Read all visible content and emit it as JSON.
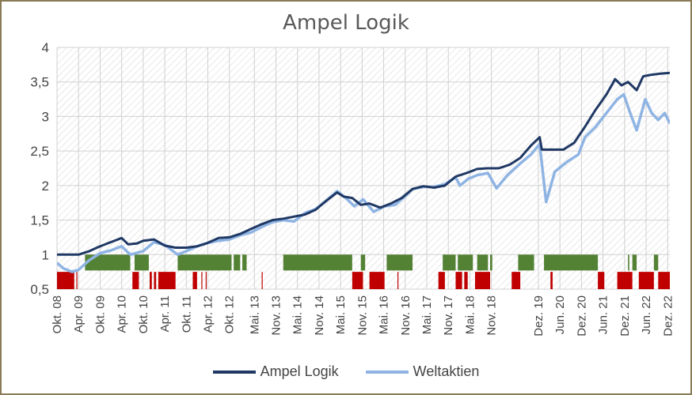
{
  "chart_data": {
    "type": "line",
    "title": "Ampel Logik",
    "xlabel": "",
    "ylabel": "",
    "ylim": [
      0.5,
      4
    ],
    "yticks": [
      "0,5",
      "1",
      "1,5",
      "2",
      "2,5",
      "3",
      "3,5",
      "4"
    ],
    "x_range": [
      2008.75,
      2022.97
    ],
    "x_ticks": [
      {
        "t": 2008.75,
        "label": "Okt. 08"
      },
      {
        "t": 2009.25,
        "label": "Apr. 09"
      },
      {
        "t": 2009.75,
        "label": "Okt. 09"
      },
      {
        "t": 2010.25,
        "label": "Apr. 10"
      },
      {
        "t": 2010.75,
        "label": "Okt. 10"
      },
      {
        "t": 2011.25,
        "label": "Apr. 11"
      },
      {
        "t": 2011.75,
        "label": "Okt. 11"
      },
      {
        "t": 2012.25,
        "label": "Apr. 12"
      },
      {
        "t": 2012.75,
        "label": "Okt. 12"
      },
      {
        "t": 2013.33,
        "label": "Mai. 13"
      },
      {
        "t": 2013.83,
        "label": "Nov. 13"
      },
      {
        "t": 2014.33,
        "label": "Mai. 14"
      },
      {
        "t": 2014.83,
        "label": "Nov. 14"
      },
      {
        "t": 2015.33,
        "label": "Mai. 15"
      },
      {
        "t": 2015.83,
        "label": "Nov. 15"
      },
      {
        "t": 2016.33,
        "label": "Mai. 16"
      },
      {
        "t": 2016.83,
        "label": "Nov. 16"
      },
      {
        "t": 2017.33,
        "label": "Mai. 17"
      },
      {
        "t": 2017.83,
        "label": "Nov. 17"
      },
      {
        "t": 2018.33,
        "label": "Mai. 18"
      },
      {
        "t": 2018.83,
        "label": "Nov. 18"
      },
      {
        "t": 2019.92,
        "label": "Dez. 19"
      },
      {
        "t": 2020.42,
        "label": "Jun. 20"
      },
      {
        "t": 2020.92,
        "label": "Dez. 20"
      },
      {
        "t": 2021.42,
        "label": "Jun. 21"
      },
      {
        "t": 2021.92,
        "label": "Dez. 21"
      },
      {
        "t": 2022.42,
        "label": "Jun. 22"
      },
      {
        "t": 2022.92,
        "label": "Dez. 22"
      }
    ],
    "grid": true,
    "legend_position": "bottom",
    "series": [
      {
        "name": "Ampel Logik",
        "color": "#1f3864",
        "points": [
          [
            2008.75,
            1.0
          ],
          [
            2009.0,
            1.0
          ],
          [
            2009.25,
            1.0
          ],
          [
            2009.5,
            1.05
          ],
          [
            2009.75,
            1.12
          ],
          [
            2010.0,
            1.18
          ],
          [
            2010.25,
            1.24
          ],
          [
            2010.4,
            1.15
          ],
          [
            2010.6,
            1.16
          ],
          [
            2010.75,
            1.2
          ],
          [
            2011.0,
            1.22
          ],
          [
            2011.25,
            1.13
          ],
          [
            2011.5,
            1.1
          ],
          [
            2011.75,
            1.1
          ],
          [
            2012.0,
            1.12
          ],
          [
            2012.25,
            1.17
          ],
          [
            2012.5,
            1.24
          ],
          [
            2012.75,
            1.25
          ],
          [
            2013.0,
            1.3
          ],
          [
            2013.25,
            1.37
          ],
          [
            2013.5,
            1.44
          ],
          [
            2013.75,
            1.5
          ],
          [
            2014.0,
            1.52
          ],
          [
            2014.25,
            1.55
          ],
          [
            2014.5,
            1.58
          ],
          [
            2014.75,
            1.65
          ],
          [
            2015.0,
            1.78
          ],
          [
            2015.25,
            1.9
          ],
          [
            2015.4,
            1.84
          ],
          [
            2015.6,
            1.82
          ],
          [
            2015.8,
            1.72
          ],
          [
            2016.0,
            1.74
          ],
          [
            2016.25,
            1.68
          ],
          [
            2016.5,
            1.74
          ],
          [
            2016.75,
            1.82
          ],
          [
            2017.0,
            1.95
          ],
          [
            2017.25,
            1.99
          ],
          [
            2017.5,
            1.97
          ],
          [
            2017.75,
            2.0
          ],
          [
            2018.0,
            2.13
          ],
          [
            2018.25,
            2.18
          ],
          [
            2018.5,
            2.24
          ],
          [
            2018.75,
            2.25
          ],
          [
            2019.0,
            2.25
          ],
          [
            2019.25,
            2.3
          ],
          [
            2019.5,
            2.4
          ],
          [
            2019.75,
            2.58
          ],
          [
            2019.95,
            2.7
          ],
          [
            2020.0,
            2.52
          ],
          [
            2020.25,
            2.52
          ],
          [
            2020.5,
            2.52
          ],
          [
            2020.75,
            2.62
          ],
          [
            2021.0,
            2.85
          ],
          [
            2021.25,
            3.1
          ],
          [
            2021.5,
            3.32
          ],
          [
            2021.7,
            3.54
          ],
          [
            2021.85,
            3.45
          ],
          [
            2022.0,
            3.5
          ],
          [
            2022.2,
            3.38
          ],
          [
            2022.35,
            3.58
          ],
          [
            2022.5,
            3.6
          ],
          [
            2022.75,
            3.62
          ],
          [
            2022.97,
            3.63
          ]
        ]
      },
      {
        "name": "Weltaktien",
        "color": "#8fb4e3",
        "points": [
          [
            2008.75,
            0.88
          ],
          [
            2008.9,
            0.8
          ],
          [
            2009.1,
            0.75
          ],
          [
            2009.25,
            0.78
          ],
          [
            2009.5,
            0.92
          ],
          [
            2009.75,
            1.02
          ],
          [
            2010.0,
            1.06
          ],
          [
            2010.25,
            1.12
          ],
          [
            2010.45,
            1.0
          ],
          [
            2010.75,
            1.05
          ],
          [
            2011.0,
            1.18
          ],
          [
            2011.25,
            1.14
          ],
          [
            2011.55,
            1.0
          ],
          [
            2011.75,
            1.05
          ],
          [
            2012.0,
            1.12
          ],
          [
            2012.25,
            1.17
          ],
          [
            2012.5,
            1.2
          ],
          [
            2012.75,
            1.22
          ],
          [
            2013.0,
            1.28
          ],
          [
            2013.25,
            1.32
          ],
          [
            2013.5,
            1.4
          ],
          [
            2013.75,
            1.47
          ],
          [
            2014.0,
            1.5
          ],
          [
            2014.25,
            1.48
          ],
          [
            2014.5,
            1.6
          ],
          [
            2014.75,
            1.66
          ],
          [
            2015.0,
            1.78
          ],
          [
            2015.25,
            1.92
          ],
          [
            2015.45,
            1.82
          ],
          [
            2015.65,
            1.7
          ],
          [
            2015.85,
            1.8
          ],
          [
            2016.1,
            1.62
          ],
          [
            2016.35,
            1.7
          ],
          [
            2016.6,
            1.72
          ],
          [
            2016.85,
            1.86
          ],
          [
            2017.0,
            1.95
          ],
          [
            2017.25,
            1.98
          ],
          [
            2017.5,
            1.98
          ],
          [
            2017.75,
            2.02
          ],
          [
            2018.0,
            2.12
          ],
          [
            2018.1,
            2.0
          ],
          [
            2018.3,
            2.1
          ],
          [
            2018.5,
            2.15
          ],
          [
            2018.75,
            2.18
          ],
          [
            2018.95,
            1.96
          ],
          [
            2019.2,
            2.15
          ],
          [
            2019.5,
            2.32
          ],
          [
            2019.75,
            2.45
          ],
          [
            2019.95,
            2.6
          ],
          [
            2020.1,
            1.76
          ],
          [
            2020.3,
            2.2
          ],
          [
            2020.6,
            2.35
          ],
          [
            2020.85,
            2.45
          ],
          [
            2021.0,
            2.7
          ],
          [
            2021.25,
            2.85
          ],
          [
            2021.5,
            3.05
          ],
          [
            2021.75,
            3.25
          ],
          [
            2021.9,
            3.32
          ],
          [
            2022.05,
            3.05
          ],
          [
            2022.2,
            2.8
          ],
          [
            2022.4,
            3.25
          ],
          [
            2022.55,
            3.05
          ],
          [
            2022.7,
            2.95
          ],
          [
            2022.85,
            3.05
          ],
          [
            2022.97,
            2.9
          ]
        ]
      }
    ],
    "signal_bars": {
      "green_color": "#548235",
      "red_color": "#c00000",
      "green_range": [
        0.77,
        1.0
      ],
      "red_range": [
        0.5,
        0.75
      ],
      "green": [
        [
          2009.4,
          2010.45
        ],
        [
          2010.55,
          2010.88
        ],
        [
          2011.55,
          2012.8
        ],
        [
          2012.0,
          2012.05
        ],
        [
          2012.85,
          2013.0
        ],
        [
          2013.05,
          2013.15
        ],
        [
          2014.0,
          2015.6
        ],
        [
          2015.8,
          2015.9
        ],
        [
          2016.4,
          2017.0
        ],
        [
          2017.7,
          2018.0
        ],
        [
          2018.05,
          2018.4
        ],
        [
          2018.5,
          2018.75
        ],
        [
          2018.8,
          2018.85
        ],
        [
          2019.45,
          2019.82
        ],
        [
          2020.05,
          2021.3
        ],
        [
          2022.0,
          2022.03
        ],
        [
          2022.1,
          2022.2
        ],
        [
          2022.6,
          2022.7
        ]
      ],
      "red": [
        [
          2008.75,
          2009.15
        ],
        [
          2009.2,
          2009.22
        ],
        [
          2010.5,
          2010.65
        ],
        [
          2010.9,
          2010.95
        ],
        [
          2011.0,
          2011.05
        ],
        [
          2011.1,
          2011.5
        ],
        [
          2011.9,
          2012.0
        ],
        [
          2012.1,
          2012.12
        ],
        [
          2012.2,
          2012.22
        ],
        [
          2013.5,
          2013.52
        ],
        [
          2015.6,
          2015.85
        ],
        [
          2016.0,
          2016.35
        ],
        [
          2016.65,
          2016.67
        ],
        [
          2017.6,
          2017.75
        ],
        [
          2018.0,
          2018.15
        ],
        [
          2018.2,
          2018.28
        ],
        [
          2018.45,
          2018.8
        ],
        [
          2019.3,
          2019.5
        ],
        [
          2020.2,
          2020.25
        ],
        [
          2021.3,
          2021.45
        ],
        [
          2021.75,
          2022.1
        ],
        [
          2022.25,
          2022.6
        ],
        [
          2022.7,
          2022.97
        ]
      ]
    }
  }
}
